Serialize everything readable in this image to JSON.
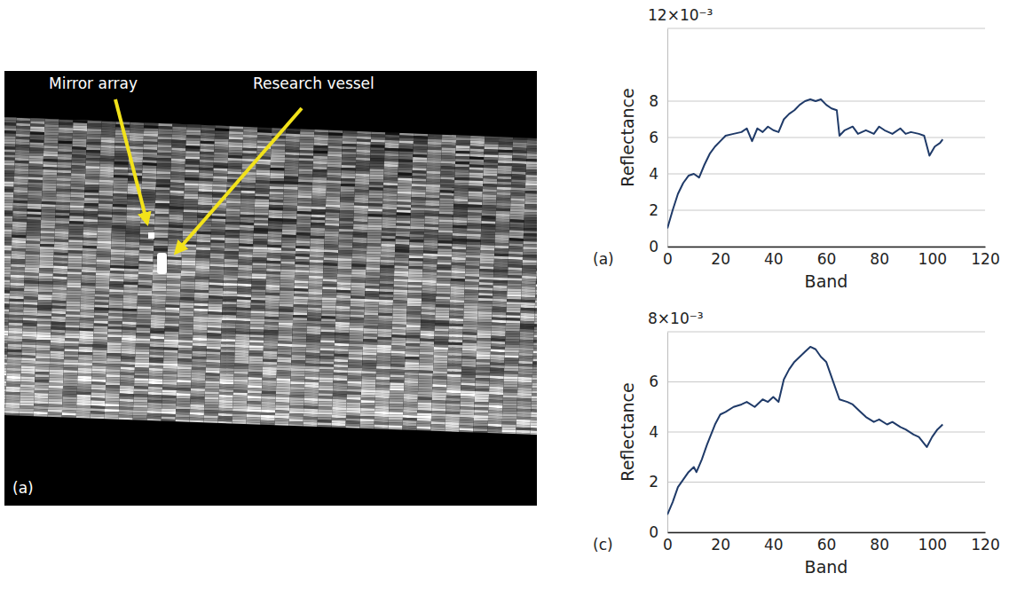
{
  "image": {
    "panel_label": "(a)",
    "annotations": [
      "Mirror array",
      "Research vessel"
    ]
  },
  "chart_data": [
    {
      "type": "line",
      "panel_label": "(a)",
      "x_label": "Band",
      "y_label": "Reflectance",
      "x": [
        0,
        2,
        4,
        6,
        8,
        10,
        12,
        14,
        16,
        18,
        20,
        22,
        25,
        28,
        30,
        32,
        34,
        36,
        38,
        40,
        42,
        44,
        46,
        48,
        50,
        52,
        54,
        56,
        58,
        60,
        62,
        64,
        65,
        67,
        70,
        72,
        75,
        78,
        80,
        82,
        85,
        88,
        90,
        92,
        95,
        97,
        99,
        101,
        103,
        104
      ],
      "values": [
        1.0,
        2.0,
        2.9,
        3.5,
        3.9,
        4.0,
        3.8,
        4.5,
        5.1,
        5.5,
        5.8,
        6.1,
        6.2,
        6.3,
        6.5,
        5.8,
        6.5,
        6.3,
        6.6,
        6.4,
        6.3,
        7.0,
        7.3,
        7.5,
        7.8,
        8.0,
        8.1,
        8.0,
        8.1,
        7.8,
        7.6,
        7.5,
        6.1,
        6.4,
        6.6,
        6.2,
        6.4,
        6.2,
        6.6,
        6.4,
        6.2,
        6.5,
        6.2,
        6.3,
        6.2,
        6.1,
        5.0,
        5.5,
        5.7,
        5.9
      ],
      "color": "#1f3a68",
      "xlim": [
        0,
        120
      ],
      "xticks": [
        0,
        20,
        40,
        60,
        80,
        100,
        120
      ],
      "ylim": [
        0,
        12
      ],
      "yticks": [
        0,
        2,
        4,
        6,
        8,
        {
          "value": 12,
          "label": "12×10⁻³"
        }
      ],
      "grid": true
    },
    {
      "type": "line",
      "panel_label": "(c)",
      "x_label": "Band",
      "y_label": "Reflectance",
      "x": [
        0,
        2,
        4,
        6,
        8,
        10,
        11,
        13,
        15,
        18,
        20,
        22,
        25,
        28,
        30,
        33,
        36,
        38,
        40,
        42,
        44,
        46,
        48,
        50,
        52,
        54,
        56,
        58,
        60,
        62,
        65,
        68,
        70,
        73,
        75,
        78,
        80,
        83,
        85,
        88,
        90,
        93,
        95,
        98,
        100,
        102,
        104
      ],
      "values": [
        0.7,
        1.2,
        1.8,
        2.1,
        2.4,
        2.6,
        2.4,
        2.9,
        3.5,
        4.3,
        4.7,
        4.8,
        5.0,
        5.1,
        5.2,
        5.0,
        5.3,
        5.2,
        5.4,
        5.2,
        6.1,
        6.5,
        6.8,
        7.0,
        7.2,
        7.4,
        7.3,
        7.0,
        6.8,
        6.2,
        5.3,
        5.2,
        5.1,
        4.8,
        4.6,
        4.4,
        4.5,
        4.3,
        4.4,
        4.2,
        4.1,
        3.9,
        3.8,
        3.4,
        3.8,
        4.1,
        4.3
      ],
      "color": "#1f3a68",
      "xlim": [
        0,
        120
      ],
      "xticks": [
        0,
        20,
        40,
        60,
        80,
        100,
        120
      ],
      "ylim": [
        0,
        8
      ],
      "yticks": [
        0,
        2,
        4,
        6,
        {
          "value": 8,
          "label": "8×10⁻³"
        }
      ],
      "grid": true
    }
  ]
}
